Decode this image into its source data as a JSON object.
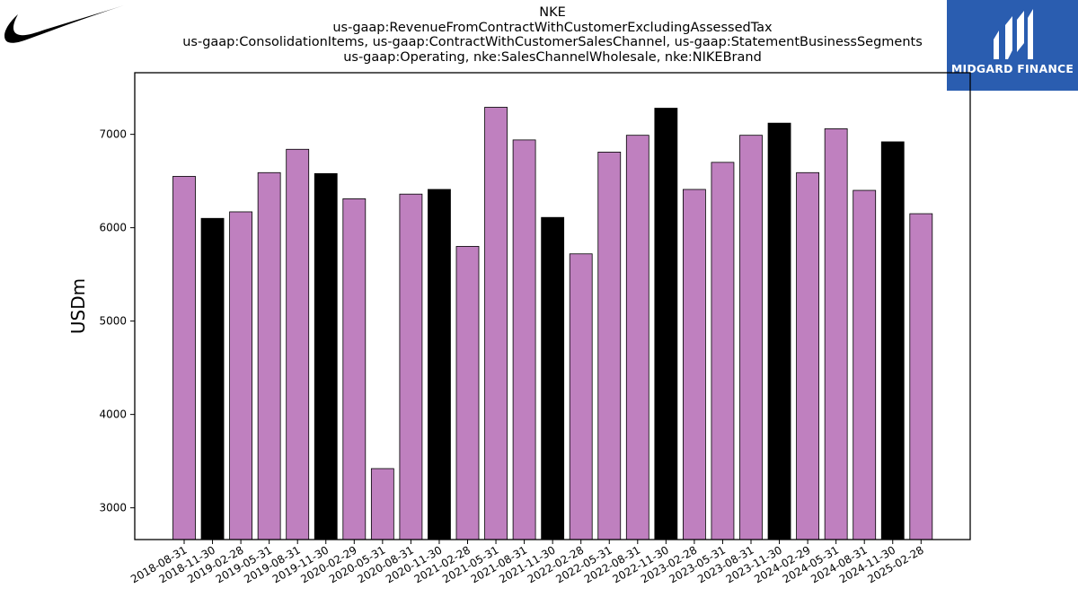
{
  "chart_data": {
    "type": "bar",
    "title_lines": [
      "NKE",
      "us-gaap:RevenueFromContractWithCustomerExcludingAssessedTax",
      "us-gaap:ConsolidationItems, us-gaap:ContractWithCustomerSalesChannel, us-gaap:StatementBusinessSegments",
      "us-gaap:Operating, nke:SalesChannelWholesale, nke:NIKEBrand"
    ],
    "ylabel": "USDm",
    "xlabel": "",
    "ylim": [
      2660,
      7660
    ],
    "yticks": [
      3000,
      4000,
      5000,
      6000,
      7000
    ],
    "grid": false,
    "categories": [
      "2018-08-31",
      "2018-11-30",
      "2019-02-28",
      "2019-05-31",
      "2019-08-31",
      "2019-11-30",
      "2020-02-29",
      "2020-05-31",
      "2020-08-31",
      "2020-11-30",
      "2021-02-28",
      "2021-05-31",
      "2021-08-31",
      "2021-11-30",
      "2022-02-28",
      "2022-05-31",
      "2022-08-31",
      "2022-11-30",
      "2023-02-28",
      "2023-05-31",
      "2023-08-31",
      "2023-11-30",
      "2024-02-29",
      "2024-05-31",
      "2024-08-31",
      "2024-11-30",
      "2025-02-28"
    ],
    "values": [
      6550,
      6100,
      6170,
      6590,
      6840,
      6580,
      6310,
      3420,
      6360,
      6410,
      5800,
      7290,
      6940,
      6110,
      5720,
      6810,
      6990,
      7280,
      6410,
      6700,
      6990,
      7120,
      6590,
      7060,
      6400,
      6920,
      6150
    ],
    "highlight": [
      false,
      true,
      false,
      false,
      false,
      true,
      false,
      false,
      false,
      true,
      false,
      false,
      false,
      true,
      false,
      false,
      false,
      true,
      false,
      false,
      false,
      true,
      false,
      false,
      false,
      true,
      false
    ],
    "colors": {
      "bar": "#bf80bf",
      "highlight": "#000000",
      "edge": "#000000"
    }
  },
  "logos": {
    "nike": {
      "icon": "swoosh-icon",
      "color": "#000000"
    },
    "midgard": {
      "icon": "midgard-mark-icon",
      "text": "MIDGARD FINANCE",
      "background": "#2a5db0",
      "text_color": "#ffffff"
    }
  }
}
